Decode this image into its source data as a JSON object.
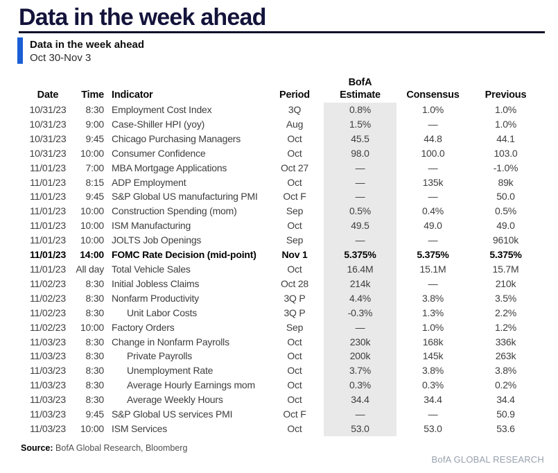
{
  "page": {
    "title": "Data in the week ahead",
    "subtitle": "Data in the week ahead",
    "date_range": "Oct 30-Nov 3",
    "source_label": "Source:",
    "source_text": "BofA Global Research, Bloomberg",
    "brand_footer": "BofA GLOBAL RESEARCH"
  },
  "colors": {
    "title_navy": "#13133b",
    "accent_blue": "#1b5fd6",
    "estimate_band_gray": "#e9e9e9",
    "brand_gray": "#97a0ad"
  },
  "table": {
    "headers": {
      "date": "Date",
      "time": "Time",
      "indicator": "Indicator",
      "period": "Period",
      "estimate_line1": "BofA",
      "estimate_line2": "Estimate",
      "consensus": "Consensus",
      "previous": "Previous"
    },
    "rows": [
      {
        "date": "10/31/23",
        "time": "8:30",
        "indicator": "Employment Cost Index",
        "period": "3Q",
        "estimate": "0.8%",
        "consensus": "1.0%",
        "previous": "1.0%",
        "bold": false,
        "indent": false
      },
      {
        "date": "10/31/23",
        "time": "9:00",
        "indicator": "Case-Shiller HPI (yoy)",
        "period": "Aug",
        "estimate": "1.5%",
        "consensus": "—",
        "previous": "1.0%",
        "bold": false,
        "indent": false
      },
      {
        "date": "10/31/23",
        "time": "9:45",
        "indicator": "Chicago Purchasing Managers",
        "period": "Oct",
        "estimate": "45.5",
        "consensus": "44.8",
        "previous": "44.1",
        "bold": false,
        "indent": false
      },
      {
        "date": "10/31/23",
        "time": "10:00",
        "indicator": "Consumer Confidence",
        "period": "Oct",
        "estimate": "98.0",
        "consensus": "100.0",
        "previous": "103.0",
        "bold": false,
        "indent": false
      },
      {
        "date": "11/01/23",
        "time": "7:00",
        "indicator": "MBA Mortgage Applications",
        "period": "Oct 27",
        "estimate": "—",
        "consensus": "—",
        "previous": "-1.0%",
        "bold": false,
        "indent": false
      },
      {
        "date": "11/01/23",
        "time": "8:15",
        "indicator": "ADP Employment",
        "period": "Oct",
        "estimate": "—",
        "consensus": "135k",
        "previous": "89k",
        "bold": false,
        "indent": false
      },
      {
        "date": "11/01/23",
        "time": "9:45",
        "indicator": "S&P Global US manufacturing PMI",
        "period": "Oct F",
        "estimate": "—",
        "consensus": "—",
        "previous": "50.0",
        "bold": false,
        "indent": false
      },
      {
        "date": "11/01/23",
        "time": "10:00",
        "indicator": "Construction Spending (mom)",
        "period": "Sep",
        "estimate": "0.5%",
        "consensus": "0.4%",
        "previous": "0.5%",
        "bold": false,
        "indent": false
      },
      {
        "date": "11/01/23",
        "time": "10:00",
        "indicator": "ISM Manufacturing",
        "period": "Oct",
        "estimate": "49.5",
        "consensus": "49.0",
        "previous": "49.0",
        "bold": false,
        "indent": false
      },
      {
        "date": "11/01/23",
        "time": "10:00",
        "indicator": "JOLTS Job Openings",
        "period": "Sep",
        "estimate": "—",
        "consensus": "—",
        "previous": "9610k",
        "bold": false,
        "indent": false
      },
      {
        "date": "11/01/23",
        "time": "14:00",
        "indicator": "FOMC Rate Decision (mid-point)",
        "period": "Nov 1",
        "estimate": "5.375%",
        "consensus": "5.375%",
        "previous": "5.375%",
        "bold": true,
        "indent": false
      },
      {
        "date": "11/01/23",
        "time": "All day",
        "indicator": "Total Vehicle Sales",
        "period": "Oct",
        "estimate": "16.4M",
        "consensus": "15.1M",
        "previous": "15.7M",
        "bold": false,
        "indent": false
      },
      {
        "date": "11/02/23",
        "time": "8:30",
        "indicator": "Initial Jobless Claims",
        "period": "Oct 28",
        "estimate": "214k",
        "consensus": "—",
        "previous": "210k",
        "bold": false,
        "indent": false
      },
      {
        "date": "11/02/23",
        "time": "8:30",
        "indicator": "Nonfarm Productivity",
        "period": "3Q P",
        "estimate": "4.4%",
        "consensus": "3.8%",
        "previous": "3.5%",
        "bold": false,
        "indent": false
      },
      {
        "date": "11/02/23",
        "time": "8:30",
        "indicator": "Unit Labor Costs",
        "period": "3Q P",
        "estimate": "-0.3%",
        "consensus": "1.3%",
        "previous": "2.2%",
        "bold": false,
        "indent": true
      },
      {
        "date": "11/02/23",
        "time": "10:00",
        "indicator": "Factory Orders",
        "period": "Sep",
        "estimate": "—",
        "consensus": "1.0%",
        "previous": "1.2%",
        "bold": false,
        "indent": false
      },
      {
        "date": "11/03/23",
        "time": "8:30",
        "indicator": "Change in Nonfarm Payrolls",
        "period": "Oct",
        "estimate": "230k",
        "consensus": "168k",
        "previous": "336k",
        "bold": false,
        "indent": false
      },
      {
        "date": "11/03/23",
        "time": "8:30",
        "indicator": "Private Payrolls",
        "period": "Oct",
        "estimate": "200k",
        "consensus": "145k",
        "previous": "263k",
        "bold": false,
        "indent": true
      },
      {
        "date": "11/03/23",
        "time": "8:30",
        "indicator": "Unemployment Rate",
        "period": "Oct",
        "estimate": "3.7%",
        "consensus": "3.8%",
        "previous": "3.8%",
        "bold": false,
        "indent": true
      },
      {
        "date": "11/03/23",
        "time": "8:30",
        "indicator": "Average Hourly Earnings mom",
        "period": "Oct",
        "estimate": "0.3%",
        "consensus": "0.3%",
        "previous": "0.2%",
        "bold": false,
        "indent": true
      },
      {
        "date": "11/03/23",
        "time": "8:30",
        "indicator": "Average Weekly Hours",
        "period": "Oct",
        "estimate": "34.4",
        "consensus": "34.4",
        "previous": "34.4",
        "bold": false,
        "indent": true
      },
      {
        "date": "11/03/23",
        "time": "9:45",
        "indicator": "S&P Global US services PMI",
        "period": "Oct F",
        "estimate": "—",
        "consensus": "—",
        "previous": "50.9",
        "bold": false,
        "indent": false
      },
      {
        "date": "11/03/23",
        "time": "10:00",
        "indicator": "ISM Services",
        "period": "Oct",
        "estimate": "53.0",
        "consensus": "53.0",
        "previous": "53.6",
        "bold": false,
        "indent": false
      }
    ]
  }
}
